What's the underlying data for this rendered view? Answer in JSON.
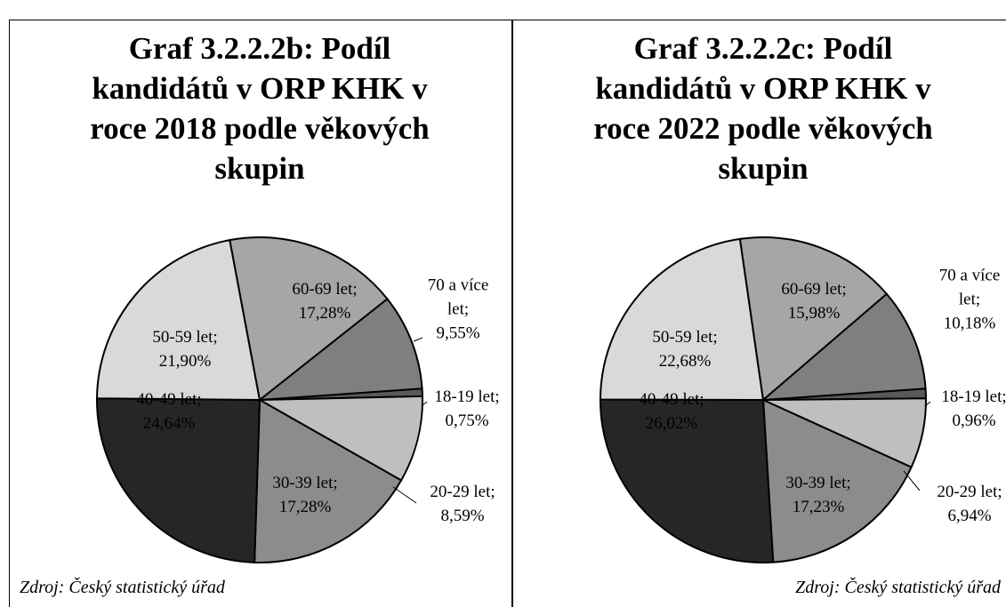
{
  "chart_data": [
    {
      "type": "pie",
      "title": "Graf 3.2.2.2b: Podíl kandidátů v ORP KHK v roce 2018 podle věkových skupin",
      "categories": [
        "18-19 let",
        "20-29 let",
        "30-39 let",
        "40-49 let",
        "50-59 let",
        "60-69 let",
        "70 a více let"
      ],
      "values": [
        0.75,
        8.59,
        17.28,
        24.64,
        21.9,
        17.28,
        9.55
      ],
      "value_labels": [
        "0,75%",
        "8,59%",
        "17,28%",
        "24,64%",
        "21,90%",
        "17,28%",
        "9,55%"
      ],
      "colors": [
        "#595959",
        "#bfbfbf",
        "#8c8c8c",
        "#262626",
        "#d9d9d9",
        "#a6a6a6",
        "#7f7f7f"
      ],
      "label_separator": ";",
      "source": "Zdroj: Český statistický úřad"
    },
    {
      "type": "pie",
      "title": "Graf 3.2.2.2c: Podíl kandidátů v ORP KHK v roce 2022 podle věkových skupin",
      "categories": [
        "18-19 let",
        "20-29 let",
        "30-39 let",
        "40-49 let",
        "50-59 let",
        "60-69 let",
        "70 a více let"
      ],
      "values": [
        0.96,
        6.94,
        17.23,
        26.02,
        22.68,
        15.98,
        10.18
      ],
      "value_labels": [
        "0,96%",
        "6,94%",
        "17,23%",
        "26,02%",
        "22,68%",
        "15,98%",
        "10,18%"
      ],
      "colors": [
        "#595959",
        "#bfbfbf",
        "#8c8c8c",
        "#262626",
        "#d9d9d9",
        "#a6a6a6",
        "#7f7f7f"
      ],
      "label_separator": ";",
      "source": "Zdroj: Český statistický úřad"
    }
  ]
}
